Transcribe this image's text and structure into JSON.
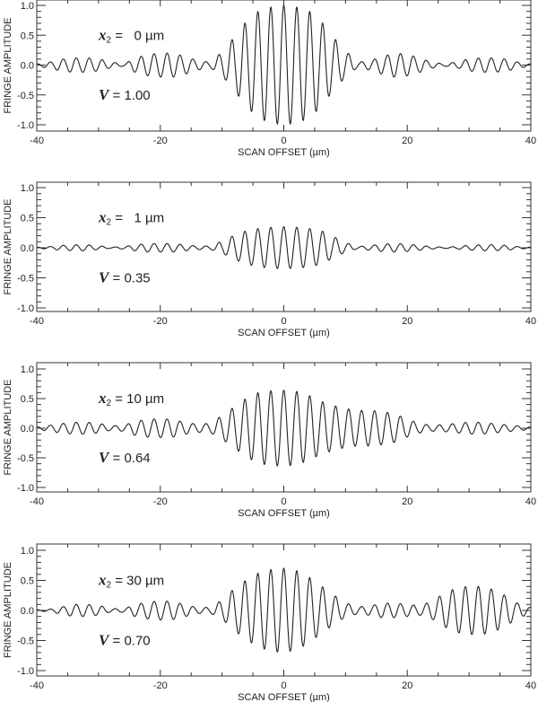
{
  "chart_data": [
    {
      "type": "line",
      "title": "",
      "xlabel": "SCAN OFFSET (µm)",
      "ylabel": "FRINGE AMPLITUDE",
      "xlim": [
        -40,
        40
      ],
      "ylim": [
        -1.1,
        1.1
      ],
      "xticks": [
        -40,
        -20,
        0,
        20,
        40
      ],
      "yticks": [
        "1.0",
        "0.5",
        "0.0",
        "-0.5",
        "-1.0"
      ],
      "annotation_x2": "x2 = 0 µm",
      "x2_value": "0",
      "annotation_V": "V = 1.00",
      "V_value": "1.00",
      "fringe_period_um": 2.1,
      "envelope": {
        "x": [
          -40,
          -38,
          -36,
          -34,
          -32,
          -30,
          -28,
          -26,
          -24,
          -22,
          -20,
          -18,
          -16,
          -14,
          -12,
          -10,
          -8,
          -6,
          -4,
          -2,
          0,
          2,
          4,
          6,
          8,
          10,
          12,
          14,
          16,
          18,
          20,
          22,
          24,
          26,
          28,
          30,
          32,
          34,
          36,
          38,
          40
        ],
        "y": [
          0.02,
          0.05,
          0.1,
          0.12,
          0.12,
          0.1,
          0.05,
          0.02,
          0.12,
          0.18,
          0.2,
          0.2,
          0.15,
          0.08,
          0.05,
          0.2,
          0.45,
          0.72,
          0.9,
          0.97,
          1.0,
          0.97,
          0.9,
          0.72,
          0.45,
          0.22,
          0.05,
          0.08,
          0.15,
          0.2,
          0.18,
          0.12,
          0.05,
          0.02,
          0.05,
          0.1,
          0.12,
          0.12,
          0.1,
          0.05,
          0.02
        ]
      }
    },
    {
      "type": "line",
      "xlabel": "SCAN OFFSET (µm)",
      "ylabel": "FRINGE AMPLITUDE",
      "xlim": [
        -40,
        40
      ],
      "ylim": [
        -1.1,
        1.1
      ],
      "xticks": [
        -40,
        -20,
        0,
        20,
        40
      ],
      "yticks": [
        "1.0",
        "0.5",
        "0.0",
        "-0.5",
        "-1.0"
      ],
      "annotation_x2": "x2 = 1 µm",
      "x2_value": "1",
      "annotation_V": "V = 0.35",
      "V_value": "0.35",
      "fringe_period_um": 2.1,
      "envelope": {
        "x": [
          -40,
          -38,
          -36,
          -34,
          -32,
          -30,
          -28,
          -26,
          -24,
          -22,
          -20,
          -18,
          -16,
          -14,
          -12,
          -10,
          -8,
          -6,
          -4,
          -2,
          0,
          2,
          4,
          6,
          8,
          10,
          12,
          14,
          16,
          18,
          20,
          22,
          24,
          26,
          28,
          30,
          32,
          34,
          36,
          38,
          40
        ],
        "y": [
          0.01,
          0.02,
          0.04,
          0.05,
          0.05,
          0.03,
          0.01,
          0.02,
          0.05,
          0.07,
          0.07,
          0.07,
          0.05,
          0.03,
          0.03,
          0.1,
          0.2,
          0.28,
          0.32,
          0.34,
          0.35,
          0.34,
          0.32,
          0.28,
          0.18,
          0.08,
          0.02,
          0.04,
          0.06,
          0.07,
          0.06,
          0.04,
          0.02,
          0.01,
          0.02,
          0.04,
          0.05,
          0.05,
          0.04,
          0.02,
          0.01
        ]
      }
    },
    {
      "type": "line",
      "xlabel": "SCAN OFFSET (µm)",
      "ylabel": "FRINGE AMPLITUDE",
      "xlim": [
        -40,
        40
      ],
      "ylim": [
        -1.1,
        1.1
      ],
      "xticks": [
        -40,
        -20,
        0,
        20,
        40
      ],
      "yticks": [
        "1.0",
        "0.5",
        "0.0",
        "-0.5",
        "-1.0"
      ],
      "annotation_x2": "x2 = 10 µm",
      "x2_value": "10",
      "annotation_V": "V = 0.64",
      "V_value": "0.64",
      "fringe_period_um": 2.1,
      "envelope": {
        "x": [
          -40,
          -38,
          -36,
          -34,
          -32,
          -30,
          -28,
          -26,
          -24,
          -22,
          -20,
          -18,
          -16,
          -14,
          -12,
          -10,
          -8,
          -6,
          -4,
          -2,
          0,
          2,
          4,
          6,
          8,
          10,
          12,
          14,
          16,
          18,
          20,
          22,
          24,
          26,
          28,
          30,
          32,
          34,
          36,
          38,
          40
        ],
        "y": [
          0.02,
          0.05,
          0.08,
          0.1,
          0.1,
          0.08,
          0.04,
          0.05,
          0.12,
          0.15,
          0.16,
          0.15,
          0.1,
          0.07,
          0.08,
          0.2,
          0.35,
          0.5,
          0.6,
          0.63,
          0.64,
          0.62,
          0.55,
          0.45,
          0.38,
          0.33,
          0.3,
          0.3,
          0.28,
          0.24,
          0.15,
          0.08,
          0.05,
          0.06,
          0.08,
          0.1,
          0.1,
          0.08,
          0.06,
          0.04,
          0.02
        ]
      }
    },
    {
      "type": "line",
      "xlabel": "SCAN OFFSET (µm)",
      "ylabel": "FRINGE AMPLITUDE",
      "xlim": [
        -40,
        40
      ],
      "ylim": [
        -1.1,
        1.1
      ],
      "xticks": [
        -40,
        -20,
        0,
        20,
        40
      ],
      "yticks": [
        "1.0",
        "0.5",
        "0.0",
        "-0.5",
        "-1.0"
      ],
      "annotation_x2": "x2 = 30 µm",
      "x2_value": "30",
      "annotation_V": "V = 0.70",
      "V_value": "0.70",
      "fringe_period_um": 2.1,
      "envelope": {
        "x": [
          -40,
          -38,
          -36,
          -34,
          -32,
          -30,
          -28,
          -26,
          -24,
          -22,
          -20,
          -18,
          -16,
          -14,
          -12,
          -10,
          -8,
          -6,
          -4,
          -2,
          0,
          2,
          4,
          6,
          8,
          10,
          12,
          14,
          16,
          18,
          20,
          22,
          24,
          26,
          28,
          30,
          32,
          34,
          36,
          38,
          40
        ],
        "y": [
          0.01,
          0.02,
          0.06,
          0.1,
          0.1,
          0.08,
          0.03,
          0.03,
          0.1,
          0.14,
          0.16,
          0.15,
          0.1,
          0.05,
          0.05,
          0.16,
          0.35,
          0.5,
          0.62,
          0.68,
          0.7,
          0.66,
          0.55,
          0.4,
          0.25,
          0.12,
          0.06,
          0.08,
          0.12,
          0.12,
          0.1,
          0.08,
          0.15,
          0.28,
          0.37,
          0.4,
          0.4,
          0.35,
          0.25,
          0.12,
          0.05
        ]
      }
    }
  ]
}
